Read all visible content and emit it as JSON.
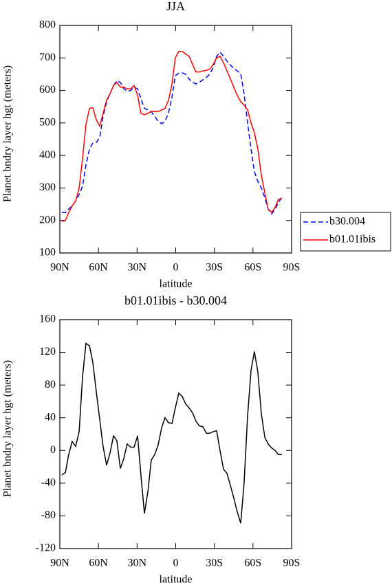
{
  "chart_data": [
    {
      "type": "line",
      "title": "JJA",
      "xlabel": "latitude",
      "ylabel": "Planet bndry layer hgt (meters)",
      "x": [
        88.4,
        85.7,
        83.1,
        80.4,
        77.7,
        75.0,
        72.4,
        69.7,
        67.0,
        64.4,
        61.7,
        59.0,
        56.4,
        53.7,
        51.0,
        48.3,
        45.7,
        43.0,
        40.3,
        37.7,
        35.0,
        32.3,
        29.6,
        27.0,
        24.3,
        21.6,
        19.0,
        16.3,
        13.6,
        10.9,
        8.3,
        5.6,
        2.9,
        0.3,
        -2.4,
        -5.1,
        -7.7,
        -10.4,
        -13.1,
        -15.7,
        -18.4,
        -21.1,
        -23.8,
        -26.4,
        -29.1,
        -31.8,
        -34.4,
        -37.1,
        -39.8,
        -42.5,
        -45.1,
        -47.8,
        -50.5,
        -53.1,
        -55.8,
        -58.5,
        -61.1,
        -63.8,
        -66.5,
        -69.2,
        -71.8,
        -74.5,
        -77.2,
        -79.8,
        -82.5
      ],
      "series": [
        {
          "name": "b30.004",
          "color": "#0000ff",
          "dash": "dashed",
          "values": [
            225,
            224,
            235,
            245,
            260,
            280,
            305,
            370,
            420,
            438,
            440,
            455,
            520,
            565,
            590,
            615,
            630,
            625,
            605,
            598,
            600,
            610,
            605,
            575,
            545,
            540,
            535,
            520,
            505,
            498,
            505,
            530,
            580,
            645,
            653,
            654,
            650,
            635,
            625,
            620,
            625,
            633,
            640,
            650,
            670,
            705,
            718,
            705,
            690,
            678,
            668,
            660,
            652,
            590,
            500,
            420,
            350,
            320,
            300,
            270,
            235,
            220,
            235,
            255,
            272
          ]
        },
        {
          "name": "b01.01ibis",
          "color": "#ff0000",
          "dash": "solid",
          "values": [
            197,
            200,
            225,
            245,
            260,
            300,
            390,
            495,
            545,
            547,
            510,
            490,
            530,
            570,
            590,
            615,
            625,
            610,
            610,
            605,
            605,
            615,
            585,
            530,
            525,
            530,
            535,
            535,
            535,
            540,
            545,
            570,
            620,
            700,
            720,
            720,
            712,
            705,
            680,
            657,
            657,
            660,
            662,
            665,
            680,
            700,
            705,
            685,
            660,
            635,
            610,
            585,
            565,
            555,
            540,
            500,
            470,
            420,
            340,
            285,
            235,
            225,
            240,
            265,
            268
          ]
        }
      ],
      "xlim": [
        90,
        -90
      ],
      "xticks": [
        {
          "value": 90,
          "label": "90N"
        },
        {
          "value": 60,
          "label": "60N"
        },
        {
          "value": 30,
          "label": "30N"
        },
        0,
        {
          "value": -30,
          "label": "30S"
        },
        {
          "value": -60,
          "label": "60S"
        },
        {
          "value": -90,
          "label": "90S"
        }
      ],
      "ylim": [
        100,
        800
      ],
      "yticks": [
        100,
        200,
        300,
        400,
        500,
        600,
        700,
        800
      ],
      "legend": "outside-right-bottom"
    },
    {
      "type": "line",
      "title": "b01.01ibis - b30.004",
      "xlabel": "latitude",
      "ylabel": "Planet bndry layer hgt (meters)",
      "x": [
        88.4,
        85.7,
        83.1,
        80.4,
        77.7,
        75.0,
        72.4,
        69.7,
        67.0,
        64.4,
        61.7,
        59.0,
        56.4,
        53.7,
        51.0,
        48.3,
        45.7,
        43.0,
        40.3,
        37.7,
        35.0,
        32.3,
        29.6,
        27.0,
        24.3,
        21.6,
        19.0,
        16.3,
        13.6,
        10.9,
        8.3,
        5.6,
        2.9,
        0.3,
        -2.4,
        -5.1,
        -7.7,
        -10.4,
        -13.1,
        -15.7,
        -18.4,
        -21.1,
        -23.8,
        -26.4,
        -29.1,
        -31.8,
        -34.4,
        -37.1,
        -39.8,
        -42.5,
        -45.1,
        -47.8,
        -50.5,
        -53.1,
        -55.8,
        -58.5,
        -61.1,
        -63.8,
        -66.5,
        -69.2,
        -71.8,
        -74.5,
        -77.2,
        -79.8,
        -82.5
      ],
      "series": [
        {
          "color": "#000000",
          "dash": "solid",
          "values": [
            -30,
            -27,
            -5,
            11,
            5,
            23,
            90,
            131,
            128,
            108,
            72,
            38,
            5,
            -18,
            -3,
            18,
            12,
            -22,
            -10,
            8,
            4,
            4,
            18,
            -30,
            -77,
            -50,
            -12,
            -5,
            7,
            28,
            40,
            34,
            33,
            52,
            70,
            66,
            57,
            52,
            46,
            36,
            30,
            29,
            21,
            21,
            23,
            24,
            0,
            -23,
            -28,
            -43,
            -58,
            -75,
            -89,
            -40,
            42,
            98,
            121,
            96,
            45,
            16,
            8,
            3,
            0,
            -5,
            -5
          ]
        }
      ],
      "xlim": [
        90,
        -90
      ],
      "xticks": [
        {
          "value": 90,
          "label": "90N"
        },
        {
          "value": 60,
          "label": "60N"
        },
        {
          "value": 30,
          "label": "30N"
        },
        0,
        {
          "value": -30,
          "label": "30S"
        },
        {
          "value": -60,
          "label": "60S"
        },
        {
          "value": -90,
          "label": "90S"
        }
      ],
      "ylim": [
        -120,
        160
      ],
      "yticks": [
        -120,
        -80,
        -40,
        0,
        40,
        80,
        120,
        160
      ]
    }
  ]
}
